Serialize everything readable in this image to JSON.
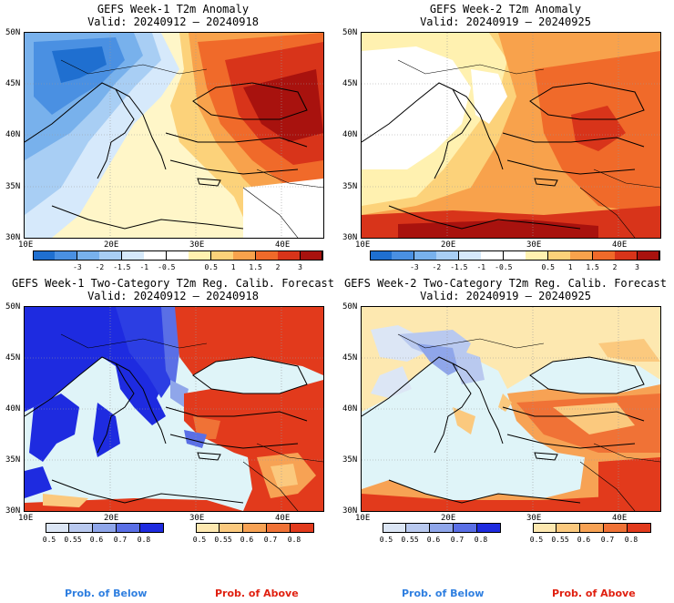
{
  "panels": [
    {
      "title": "GEFS Week-1 T2m Anomaly",
      "valid": "Valid: 20240912 – 20240918"
    },
    {
      "title": "GEFS Week-2 T2m Anomaly",
      "valid": "Valid: 20240919 – 20240925"
    },
    {
      "title": "GEFS Week-1 Two-Category T2m Reg. Calib. Forecast",
      "valid": "Valid: 20240912 – 20240918"
    },
    {
      "title": "GEFS Week-2 Two-Category T2m Reg. Calib. Forecast",
      "valid": "Valid: 20240919 – 20240925"
    }
  ],
  "lat_labels": [
    "50N",
    "45N",
    "40N",
    "35N",
    "30N"
  ],
  "lon_labels": [
    "10E",
    "20E",
    "30E",
    "40E"
  ],
  "anomaly_ticks": [
    "-3",
    "-2",
    "-1.5",
    "-1",
    "-0.5",
    "0.5",
    "1",
    "1.5",
    "2",
    "3"
  ],
  "anomaly_colors": [
    "#1f6fd0",
    "#4a90e2",
    "#78b1ec",
    "#a8ceF4",
    "#d6e9fb",
    "#ffffff",
    "#ffffff",
    "#fff1b0",
    "#fcd27a",
    "#f8a24c",
    "#f06a2a",
    "#d8341a",
    "#a8120e"
  ],
  "prob_ticks": [
    "0.5",
    "0.55",
    "0.6",
    "0.7",
    "0.8"
  ],
  "below_colors": [
    "#dce6f5",
    "#b9c9ef",
    "#8fa6ea",
    "#5a6fe6",
    "#1e2be0"
  ],
  "above_colors": [
    "#fde8b0",
    "#fbc97e",
    "#f7a254",
    "#f07236",
    "#e23a1c"
  ],
  "legend": {
    "below": "Prob. of Below",
    "above": "Prob. of Above",
    "below_color": "#2f7fe0",
    "above_color": "#e02010"
  }
}
